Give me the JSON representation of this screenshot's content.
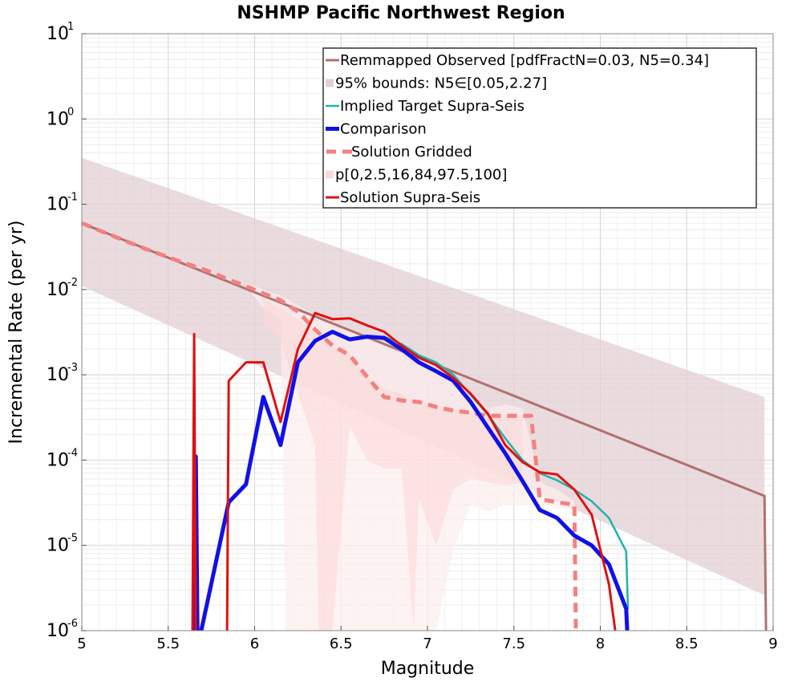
{
  "chart_data": {
    "type": "line",
    "title": "NSHMP Pacific Northwest Region",
    "xlabel": "Magnitude",
    "ylabel": "Incremental Rate (per yr)",
    "xlim": [
      5,
      9
    ],
    "ylim": [
      1e-06,
      10
    ],
    "yscale": "log",
    "grid": true,
    "legend_position": "top-right",
    "xticks": [
      "5",
      "5.5",
      "6",
      "6.5",
      "7",
      "7.5",
      "8",
      "8.5",
      "9"
    ],
    "yticks": [
      {
        "base": "10",
        "exp": "-6"
      },
      {
        "base": "10",
        "exp": "-5"
      },
      {
        "base": "10",
        "exp": "-4"
      },
      {
        "base": "10",
        "exp": "-3"
      },
      {
        "base": "10",
        "exp": "-2"
      },
      {
        "base": "10",
        "exp": "-1"
      },
      {
        "base": "10",
        "exp": "0"
      },
      {
        "base": "10",
        "exp": "1"
      }
    ],
    "legend": [
      "Remmapped Observed [pdfFractN=0.03, N5=0.34]",
      "95% bounds: N5∈[0.05,2.27]",
      "Implied Target Supra-Seis",
      "Comparison",
      "Solution Gridded",
      "p[0,2.5,16,84,97.5,100]",
      "Solution Supra-Seis"
    ],
    "colors": {
      "observed": "#b07070",
      "bounds": "#e3cfd3",
      "target": "#20b2aa",
      "comparison": "#1010e8",
      "gridded": "#f48080",
      "percentile_light": "#fdeeee",
      "percentile_mid": "#fbd9d9",
      "supra": "#e01010"
    },
    "series": [
      {
        "name": "Remmapped Observed [pdfFractN=0.03, N5=0.34]",
        "x": [
          5.0,
          8.95,
          8.96
        ],
        "y": [
          0.06,
          3.8e-05,
          1e-07
        ]
      },
      {
        "name": "95% bounds: N5∈[0.05,2.27]",
        "x": [
          5.0,
          8.95
        ],
        "upper": [
          0.35,
          0.00055
        ],
        "lower": [
          0.011,
          2.6e-06
        ]
      },
      {
        "name": "Implied Target Supra-Seis",
        "x": [
          6.65,
          6.75,
          6.85,
          6.95,
          7.05,
          7.15,
          7.25,
          7.35,
          7.45,
          7.55,
          7.65,
          7.75,
          7.85,
          7.95,
          8.05,
          8.15,
          8.16
        ],
        "y": [
          0.0028,
          0.0028,
          0.0023,
          0.0017,
          0.0014,
          0.001,
          0.00058,
          0.00034,
          0.00018,
          0.0001,
          7e-05,
          5.8e-05,
          4.5e-05,
          3.3e-05,
          2.1e-05,
          8.5e-06,
          1.8e-06
        ]
      },
      {
        "name": "Comparison",
        "x": [
          5.65,
          5.66,
          5.67,
          5.85,
          5.95,
          6.05,
          6.15,
          6.25,
          6.35,
          6.45,
          6.55,
          6.65,
          6.75,
          6.85,
          6.95,
          7.05,
          7.15,
          7.25,
          7.35,
          7.45,
          7.55,
          7.65,
          7.75,
          7.85,
          7.95,
          8.05,
          8.15,
          8.16
        ],
        "y": [
          1e-07,
          0.00011,
          1e-07,
          3.2e-05,
          5.2e-05,
          0.00055,
          0.00015,
          0.0014,
          0.0025,
          0.0032,
          0.0026,
          0.0028,
          0.0027,
          0.002,
          0.0014,
          0.0011,
          0.00085,
          0.00048,
          0.00024,
          0.00012,
          5.7e-05,
          2.6e-05,
          2.1e-05,
          1.3e-05,
          1e-05,
          6e-06,
          1.8e-06,
          1e-07
        ]
      },
      {
        "name": "Solution Gridded",
        "x": [
          5.0,
          5.15,
          5.35,
          5.55,
          5.75,
          5.85,
          5.95,
          6.05,
          6.15,
          6.25,
          6.35,
          6.45,
          6.55,
          6.65,
          6.75,
          6.85,
          6.95,
          7.05,
          7.15,
          7.25,
          7.35,
          7.45,
          7.55,
          7.6,
          7.65,
          7.75,
          7.85,
          7.86
        ],
        "y": [
          0.06,
          0.045,
          0.031,
          0.022,
          0.016,
          0.013,
          0.011,
          0.009,
          0.0075,
          0.0055,
          0.0034,
          0.0022,
          0.0017,
          0.00095,
          0.00055,
          0.0005,
          0.00048,
          0.00042,
          0.00038,
          0.00036,
          0.00033,
          0.00033,
          0.00033,
          0.00033,
          3.5e-05,
          3.2e-05,
          3e-05,
          1e-07
        ]
      },
      {
        "name": "Solution Supra-Seis",
        "x": [
          5.64,
          5.65,
          5.66,
          5.84,
          5.85,
          5.95,
          6.05,
          6.15,
          6.25,
          6.35,
          6.45,
          6.55,
          6.65,
          6.75,
          6.85,
          6.95,
          7.05,
          7.15,
          7.25,
          7.35,
          7.45,
          7.55,
          7.65,
          7.75,
          7.85,
          7.95,
          8.05,
          8.1
        ],
        "y": [
          1e-07,
          0.003,
          1e-07,
          1e-07,
          0.00085,
          0.0014,
          0.0014,
          0.00028,
          0.002,
          0.0053,
          0.0045,
          0.0046,
          0.0038,
          0.0032,
          0.0022,
          0.0016,
          0.0013,
          0.00092,
          0.0006,
          0.00035,
          0.00015,
          9.5e-05,
          7.2e-05,
          6.8e-05,
          4.5e-05,
          2.3e-05,
          3.5e-06,
          1e-07
        ]
      }
    ],
    "percentile_bands": [
      {
        "name": "p[0,2.5,16,84,97.5,100] outer",
        "x": [
          5.95,
          6.05,
          6.15,
          6.18,
          6.25,
          6.35,
          6.45,
          6.55,
          6.65,
          6.75,
          6.85,
          6.95,
          7.05,
          7.15,
          7.25,
          7.35,
          7.45,
          7.55,
          7.65,
          7.75,
          7.85
        ],
        "upper": [
          0.012,
          0.01,
          0.0085,
          0.008,
          0.0065,
          0.005,
          0.0042,
          0.0035,
          0.0028,
          0.0024,
          0.002,
          0.0015,
          0.0012,
          0.0009,
          0.0006,
          0.0004,
          0.00045,
          0.0004,
          5.5e-05,
          4.5e-05,
          3.3e-05
        ],
        "lower": [
          0.011,
          0.006,
          0.0045,
          1e-06,
          1e-06,
          1e-06,
          1e-06,
          1e-06,
          1e-06,
          1e-06,
          1e-06,
          1e-06,
          1e-06,
          9e-06,
          3e-05,
          2.5e-05,
          3e-05,
          3e-05,
          3e-05,
          2.8e-05,
          2.6e-05
        ]
      },
      {
        "name": "p[0,2.5,16,84,97.5,100] inner",
        "x": [
          6.05,
          6.15,
          6.25,
          6.35,
          6.37,
          6.45,
          6.55,
          6.65,
          6.75,
          6.85,
          6.92,
          6.95,
          7.05,
          7.15,
          7.25,
          7.35,
          7.45,
          7.55
        ],
        "upper": [
          0.008,
          0.006,
          0.0045,
          0.003,
          0.0028,
          0.0022,
          0.0018,
          0.0009,
          0.0007,
          0.0006,
          0.0005,
          0.0005,
          0.00045,
          0.0004,
          0.00037,
          0.00035,
          0.00034,
          0.00033
        ],
        "lower": [
          0.004,
          0.0025,
          0.0006,
          0.00015,
          1e-06,
          1e-06,
          0.00025,
          0.0001,
          8e-05,
          8e-05,
          1e-06,
          3.5e-05,
          1e-05,
          4.5e-05,
          6e-05,
          5.5e-05,
          5e-05,
          5.5e-05
        ]
      }
    ]
  }
}
